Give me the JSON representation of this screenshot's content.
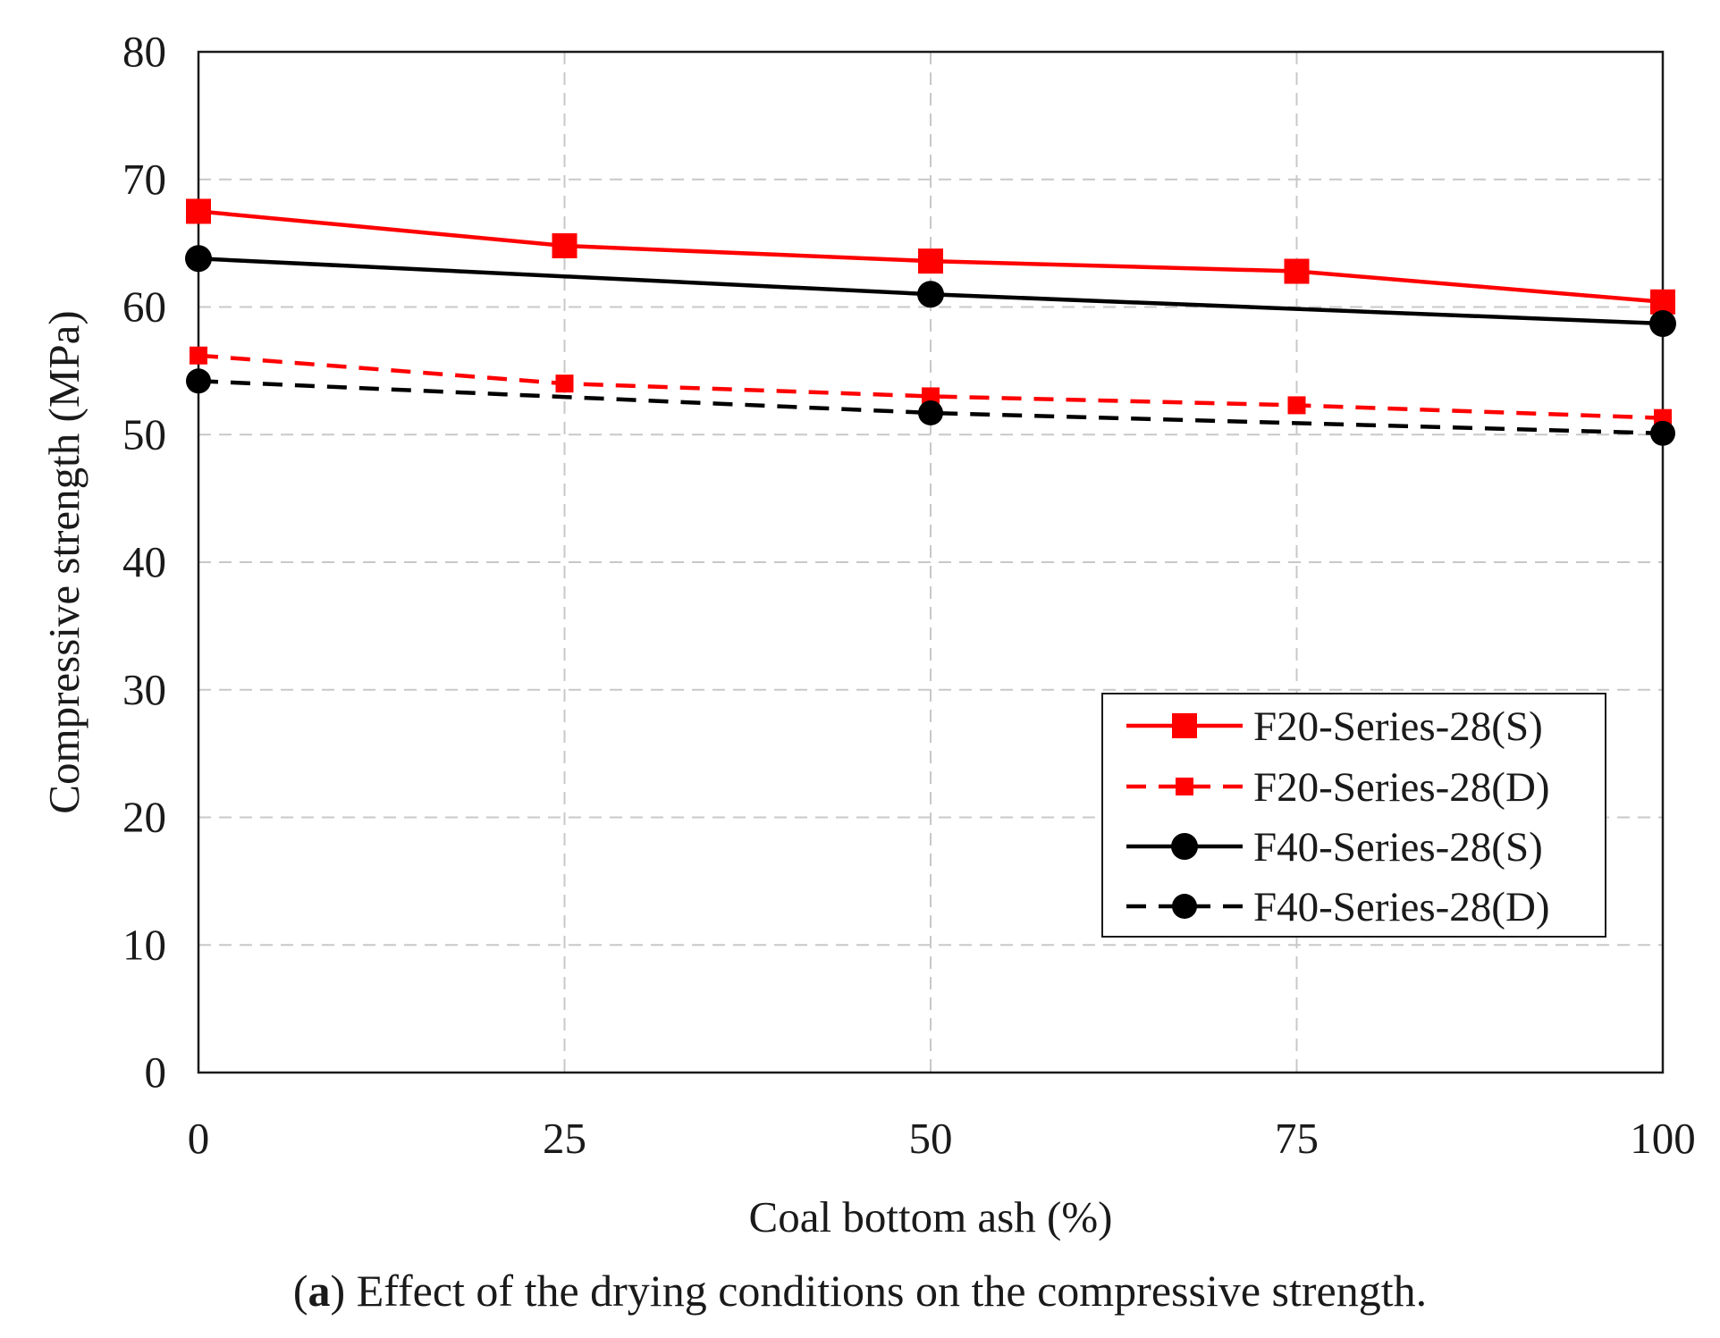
{
  "chart_data": {
    "type": "line",
    "title": "",
    "xlabel": "Coal bottom ash (%)",
    "ylabel": "Compressive strength (MPa)",
    "x": [
      0,
      25,
      50,
      75,
      100
    ],
    "xlim": [
      0,
      100
    ],
    "ylim": [
      0,
      80
    ],
    "xticks": [
      0,
      25,
      50,
      75,
      100
    ],
    "yticks": [
      0,
      10,
      20,
      30,
      40,
      50,
      60,
      70,
      80
    ],
    "grid": true,
    "legend_position": "bottom-right",
    "series": [
      {
        "name": "F20-Series-28(S)",
        "values": [
          67.5,
          64.8,
          63.6,
          62.8,
          60.4
        ],
        "color": "#ff0000",
        "dashed": false,
        "marker": "square"
      },
      {
        "name": "F20-Series-28(D)",
        "values": [
          56.2,
          54.0,
          53.0,
          52.3,
          51.3
        ],
        "color": "#ff0000",
        "dashed": true,
        "marker": "square"
      },
      {
        "name": "F40-Series-28(S)",
        "values": [
          63.8,
          null,
          61.0,
          null,
          58.7
        ],
        "color": "#000000",
        "dashed": false,
        "marker": "circle"
      },
      {
        "name": "F40-Series-28(D)",
        "values": [
          54.2,
          null,
          51.7,
          null,
          50.1
        ],
        "color": "#000000",
        "dashed": true,
        "marker": "circle"
      }
    ]
  },
  "caption": {
    "open": "(",
    "bold": "a",
    "rest": ") Effect of the drying conditions on the compressive strength."
  }
}
